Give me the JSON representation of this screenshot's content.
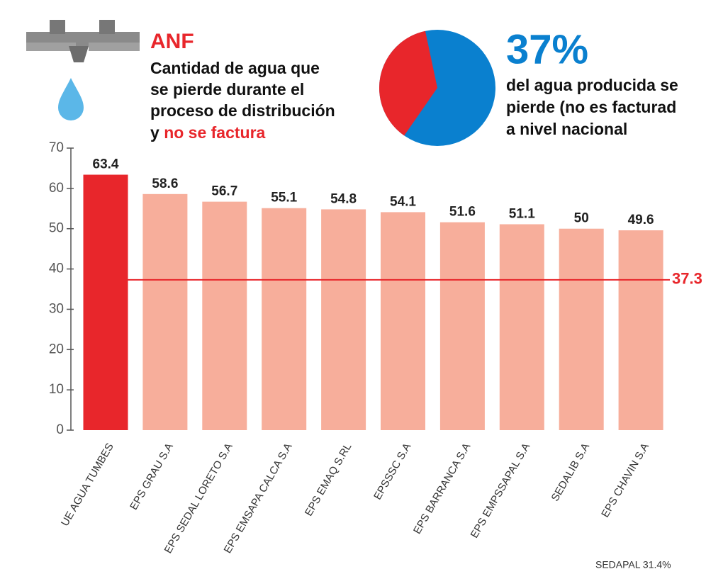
{
  "chart_data": [
    {
      "type": "bar",
      "title": "ANF",
      "description": [
        "Cantidad de agua que",
        "se pierde durante el",
        "proceso de distribución",
        "y"
      ],
      "highlight": "no se factura",
      "categories": [
        "UE AGUA TUMBES",
        "EPS GRAU S.A",
        "EPS SEDAL LORETO S.A",
        "EPS EMSAPA CALCA S.A",
        "EPS EMAQ S.RL",
        "EPSSSC S.A",
        "EPS BARRANCA S.A",
        "EPS EMPSSAPAL S.A",
        "SEDALIB S.A",
        "EPS CHAVIN S.A"
      ],
      "values": [
        63.4,
        58.6,
        56.7,
        55.1,
        54.8,
        54.1,
        51.6,
        51.1,
        50,
        49.6
      ],
      "colors": [
        "#e8262b",
        "#f7ae9b",
        "#f7ae9b",
        "#f7ae9b",
        "#f7ae9b",
        "#f7ae9b",
        "#f7ae9b",
        "#f7ae9b",
        "#f7ae9b",
        "#f7ae9b"
      ],
      "ylim": [
        0,
        70
      ],
      "yticks": [
        0,
        10,
        20,
        30,
        40,
        50,
        60,
        70
      ],
      "reference_line": {
        "value": 37.3,
        "color": "#e8262b"
      },
      "note": "SEDAPAL 31.4%"
    },
    {
      "type": "pie",
      "values": [
        37
      ],
      "value_labels": [
        "37%"
      ],
      "colors": [
        "#e8262b",
        "#0a80cf"
      ],
      "text": [
        "del agua producida se",
        "pierde (no es facturad",
        "a nivel nacional"
      ]
    }
  ]
}
